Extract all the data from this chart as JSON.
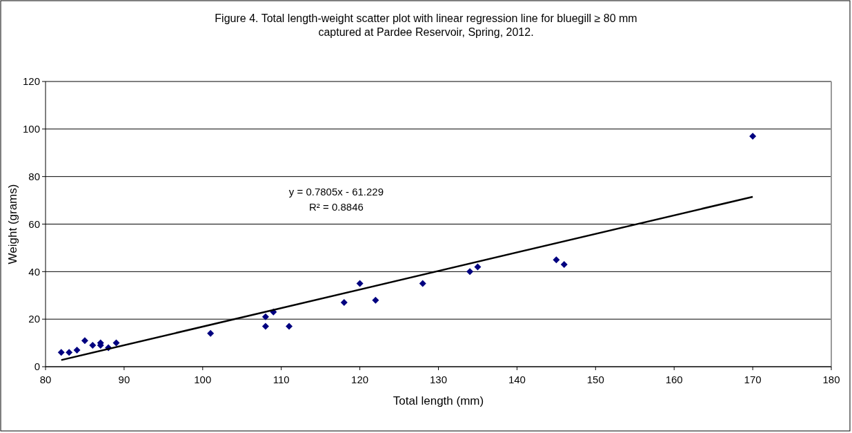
{
  "chart_data": {
    "type": "scatter",
    "title": "Figure 4.  Total length-weight scatter plot with linear regression line for bluegill ≥ 80 mm captured at Pardee Reservoir, Spring, 2012.",
    "xlabel": "Total length (mm)",
    "ylabel": "Weight (grams)",
    "xlim": [
      80,
      180
    ],
    "xticks": [
      80,
      90,
      100,
      110,
      120,
      130,
      140,
      150,
      160,
      170,
      180
    ],
    "ylim": [
      0,
      120
    ],
    "yticks": [
      0,
      20,
      40,
      60,
      80,
      100,
      120
    ],
    "grid": "y",
    "annotations": [
      "y = 0.7805x - 61.229",
      "R² = 0.8846"
    ],
    "series": [
      {
        "marker": "diamond",
        "color": "#000080",
        "x": [
          82,
          83,
          84,
          85,
          86,
          87,
          87,
          88,
          89,
          101,
          108,
          108,
          109,
          111,
          118,
          120,
          122,
          128,
          134,
          135,
          145,
          146,
          170
        ],
        "values": [
          6,
          6,
          7,
          11,
          9,
          10,
          9,
          8,
          10,
          14,
          21,
          17,
          23,
          17,
          27,
          35,
          28,
          35,
          40,
          42,
          45,
          43,
          97
        ]
      },
      {
        "type": "line",
        "color": "#000000",
        "line_style": "solid",
        "x": [
          82,
          170
        ],
        "values": [
          2.8,
          71.5
        ]
      }
    ]
  }
}
